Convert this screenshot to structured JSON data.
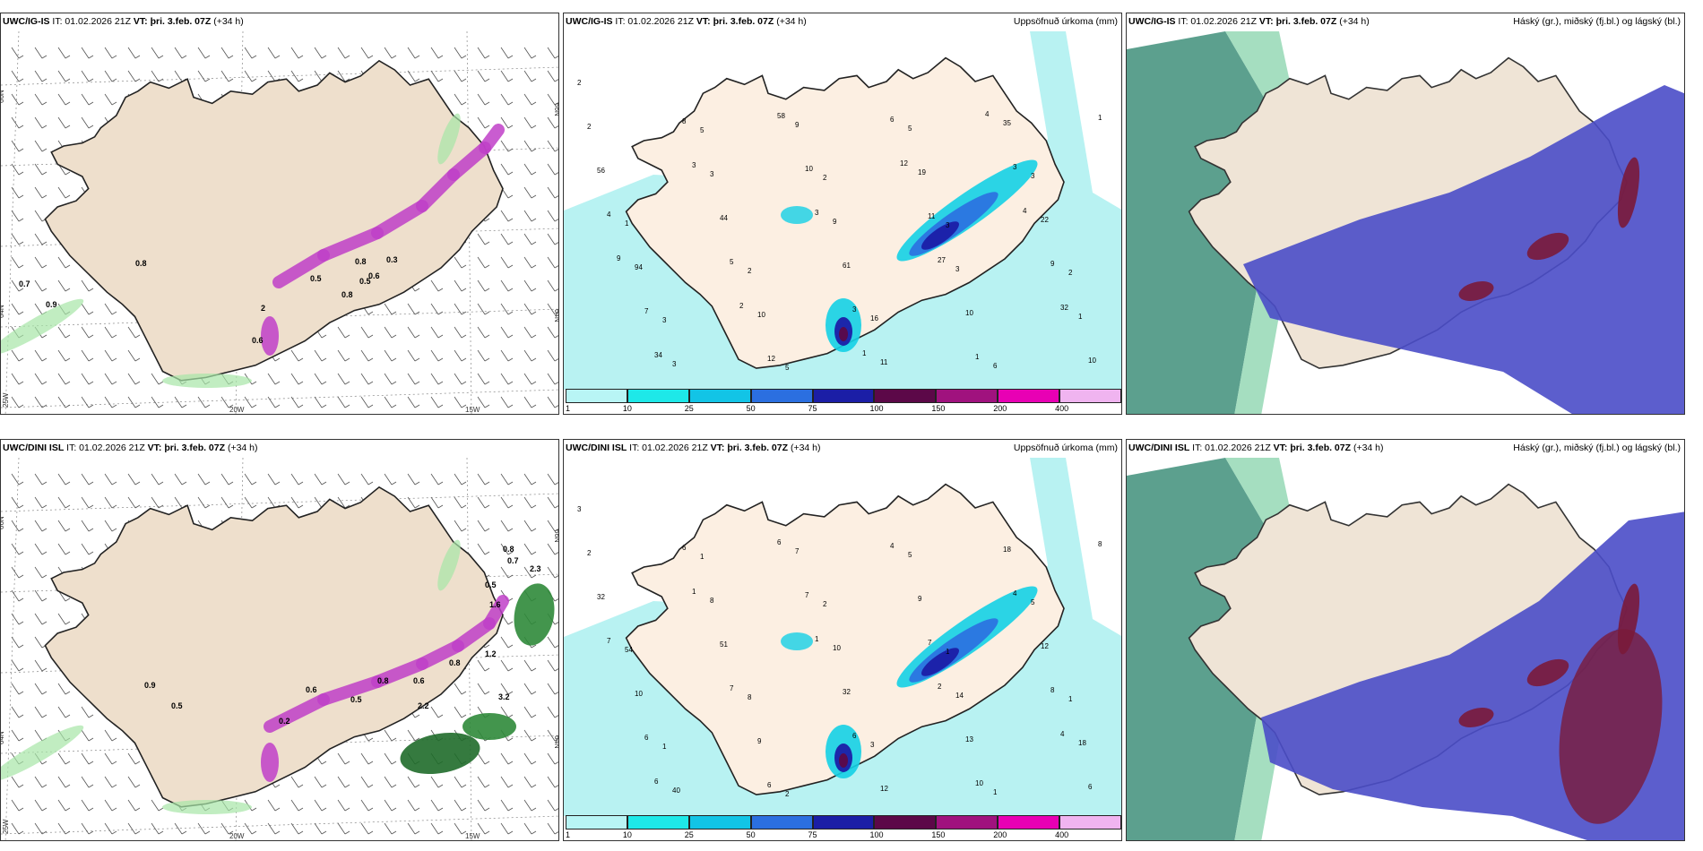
{
  "rows": [
    {
      "wind": {
        "model": "UWC/IG-IS",
        "it": "IT: 01.02.2026 21Z",
        "vt_label": "VT:",
        "vt": "þri. 3.feb. 07Z",
        "lead": "(+34 h)",
        "axis": {
          "lat_left_top": "66N",
          "lat_right_top": "66N",
          "lat_left_mid": "64N",
          "lat_right_mid": "64N",
          "lon_left": "25W",
          "lon_mid": "20W",
          "lon_right": "15W"
        },
        "labels": [
          "0.7",
          "0.9",
          "0.8",
          "0.6",
          "0.5",
          "0.8",
          "0.8",
          "0.5",
          "0.6",
          "0.3",
          "2"
        ]
      },
      "precip": {
        "model": "UWC/IG-IS",
        "it": "IT: 01.02.2026 21Z",
        "vt_label": "VT:",
        "vt": "þri. 3.feb. 07Z",
        "lead": "(+34 h)",
        "right_title": "Uppsöfnuð úrkoma (mm)",
        "labels": [
          "2",
          "5",
          "2",
          "3",
          "2",
          "3",
          "5",
          "5",
          "3",
          "1",
          "2",
          "16",
          "6",
          "2",
          "3",
          "9",
          "3",
          "1",
          "3",
          "9",
          "19",
          "22",
          "94",
          "10",
          "11",
          "35",
          "56",
          "44",
          "61",
          "10",
          "10",
          "8",
          "10",
          "11",
          "9",
          "7",
          "12",
          "6",
          "3",
          "4",
          "5",
          "3",
          "1",
          "1",
          "3",
          "3",
          "27",
          "32",
          "34",
          "58",
          "12",
          "4",
          "9",
          "2",
          "1",
          "4"
        ]
      },
      "clouds": {
        "model": "UWC/IG-IS",
        "it": "IT: 01.02.2026 21Z",
        "vt_label": "VT:",
        "vt": "þri. 3.feb. 07Z",
        "lead": "(+34 h)",
        "right_title": "Háský (gr.), miðský (fj.bl.) og lágský (bl.)"
      }
    },
    {
      "wind": {
        "model": "UWC/DINI ISL",
        "it": "IT: 01.02.2026 21Z",
        "vt_label": "VT:",
        "vt": "þri. 3.feb. 07Z",
        "lead": "(+34 h)",
        "axis": {
          "lat_left_top": "66N",
          "lat_right_top": "66N",
          "lat_left_mid": "64N",
          "lat_right_mid": "64N",
          "lon_left": "25W",
          "lon_mid": "20W",
          "lon_right": "15W"
        },
        "labels": [
          "0.9",
          "0.5",
          "0.6",
          "0.5",
          "0.8",
          "0.6",
          "0.8",
          "0.5",
          "1.6",
          "0.8",
          "0.7",
          "2.3",
          "1.2",
          "2.2",
          "3.2",
          "0.2"
        ]
      },
      "precip": {
        "model": "UWC/DINI ISL",
        "it": "IT: 01.02.2026 21Z",
        "vt_label": "VT:",
        "vt": "þri. 3.feb. 07Z",
        "lead": "(+34 h)",
        "right_title": "Uppsöfnuð úrkoma (mm)",
        "labels": [
          "3",
          "1",
          "2",
          "1",
          "1",
          "1",
          "2",
          "5",
          "5",
          "54",
          "8",
          "3",
          "1",
          "2",
          "8",
          "10",
          "14",
          "18",
          "40",
          "7",
          "9",
          "12",
          "10",
          "9",
          "12",
          "18",
          "32",
          "51",
          "32",
          "13",
          "6",
          "6",
          "7",
          "7",
          "8",
          "6",
          "6",
          "4",
          "4",
          "7",
          "7",
          "6",
          "10",
          "8",
          "1",
          "1",
          "2",
          "4",
          "6",
          "6"
        ]
      },
      "clouds": {
        "model": "UWC/DINI ISL",
        "it": "IT: 01.02.2026 21Z",
        "vt_label": "VT:",
        "vt": "þri. 3.feb. 07Z",
        "lead": "(+34 h)",
        "right_title": "Háský (gr.), miðský (fj.bl.) og lágský (bl.)"
      }
    }
  ],
  "colorbar": {
    "ticks": [
      "1",
      "10",
      "25",
      "50",
      "75",
      "100",
      "150",
      "200",
      "400"
    ],
    "colors": [
      "#b8f5f5",
      "#1ee8e8",
      "#12c4e6",
      "#2b6fe0",
      "#1b1ea6",
      "#5c0848",
      "#a0127e",
      "#e800b4",
      "#f0b4f0"
    ]
  }
}
